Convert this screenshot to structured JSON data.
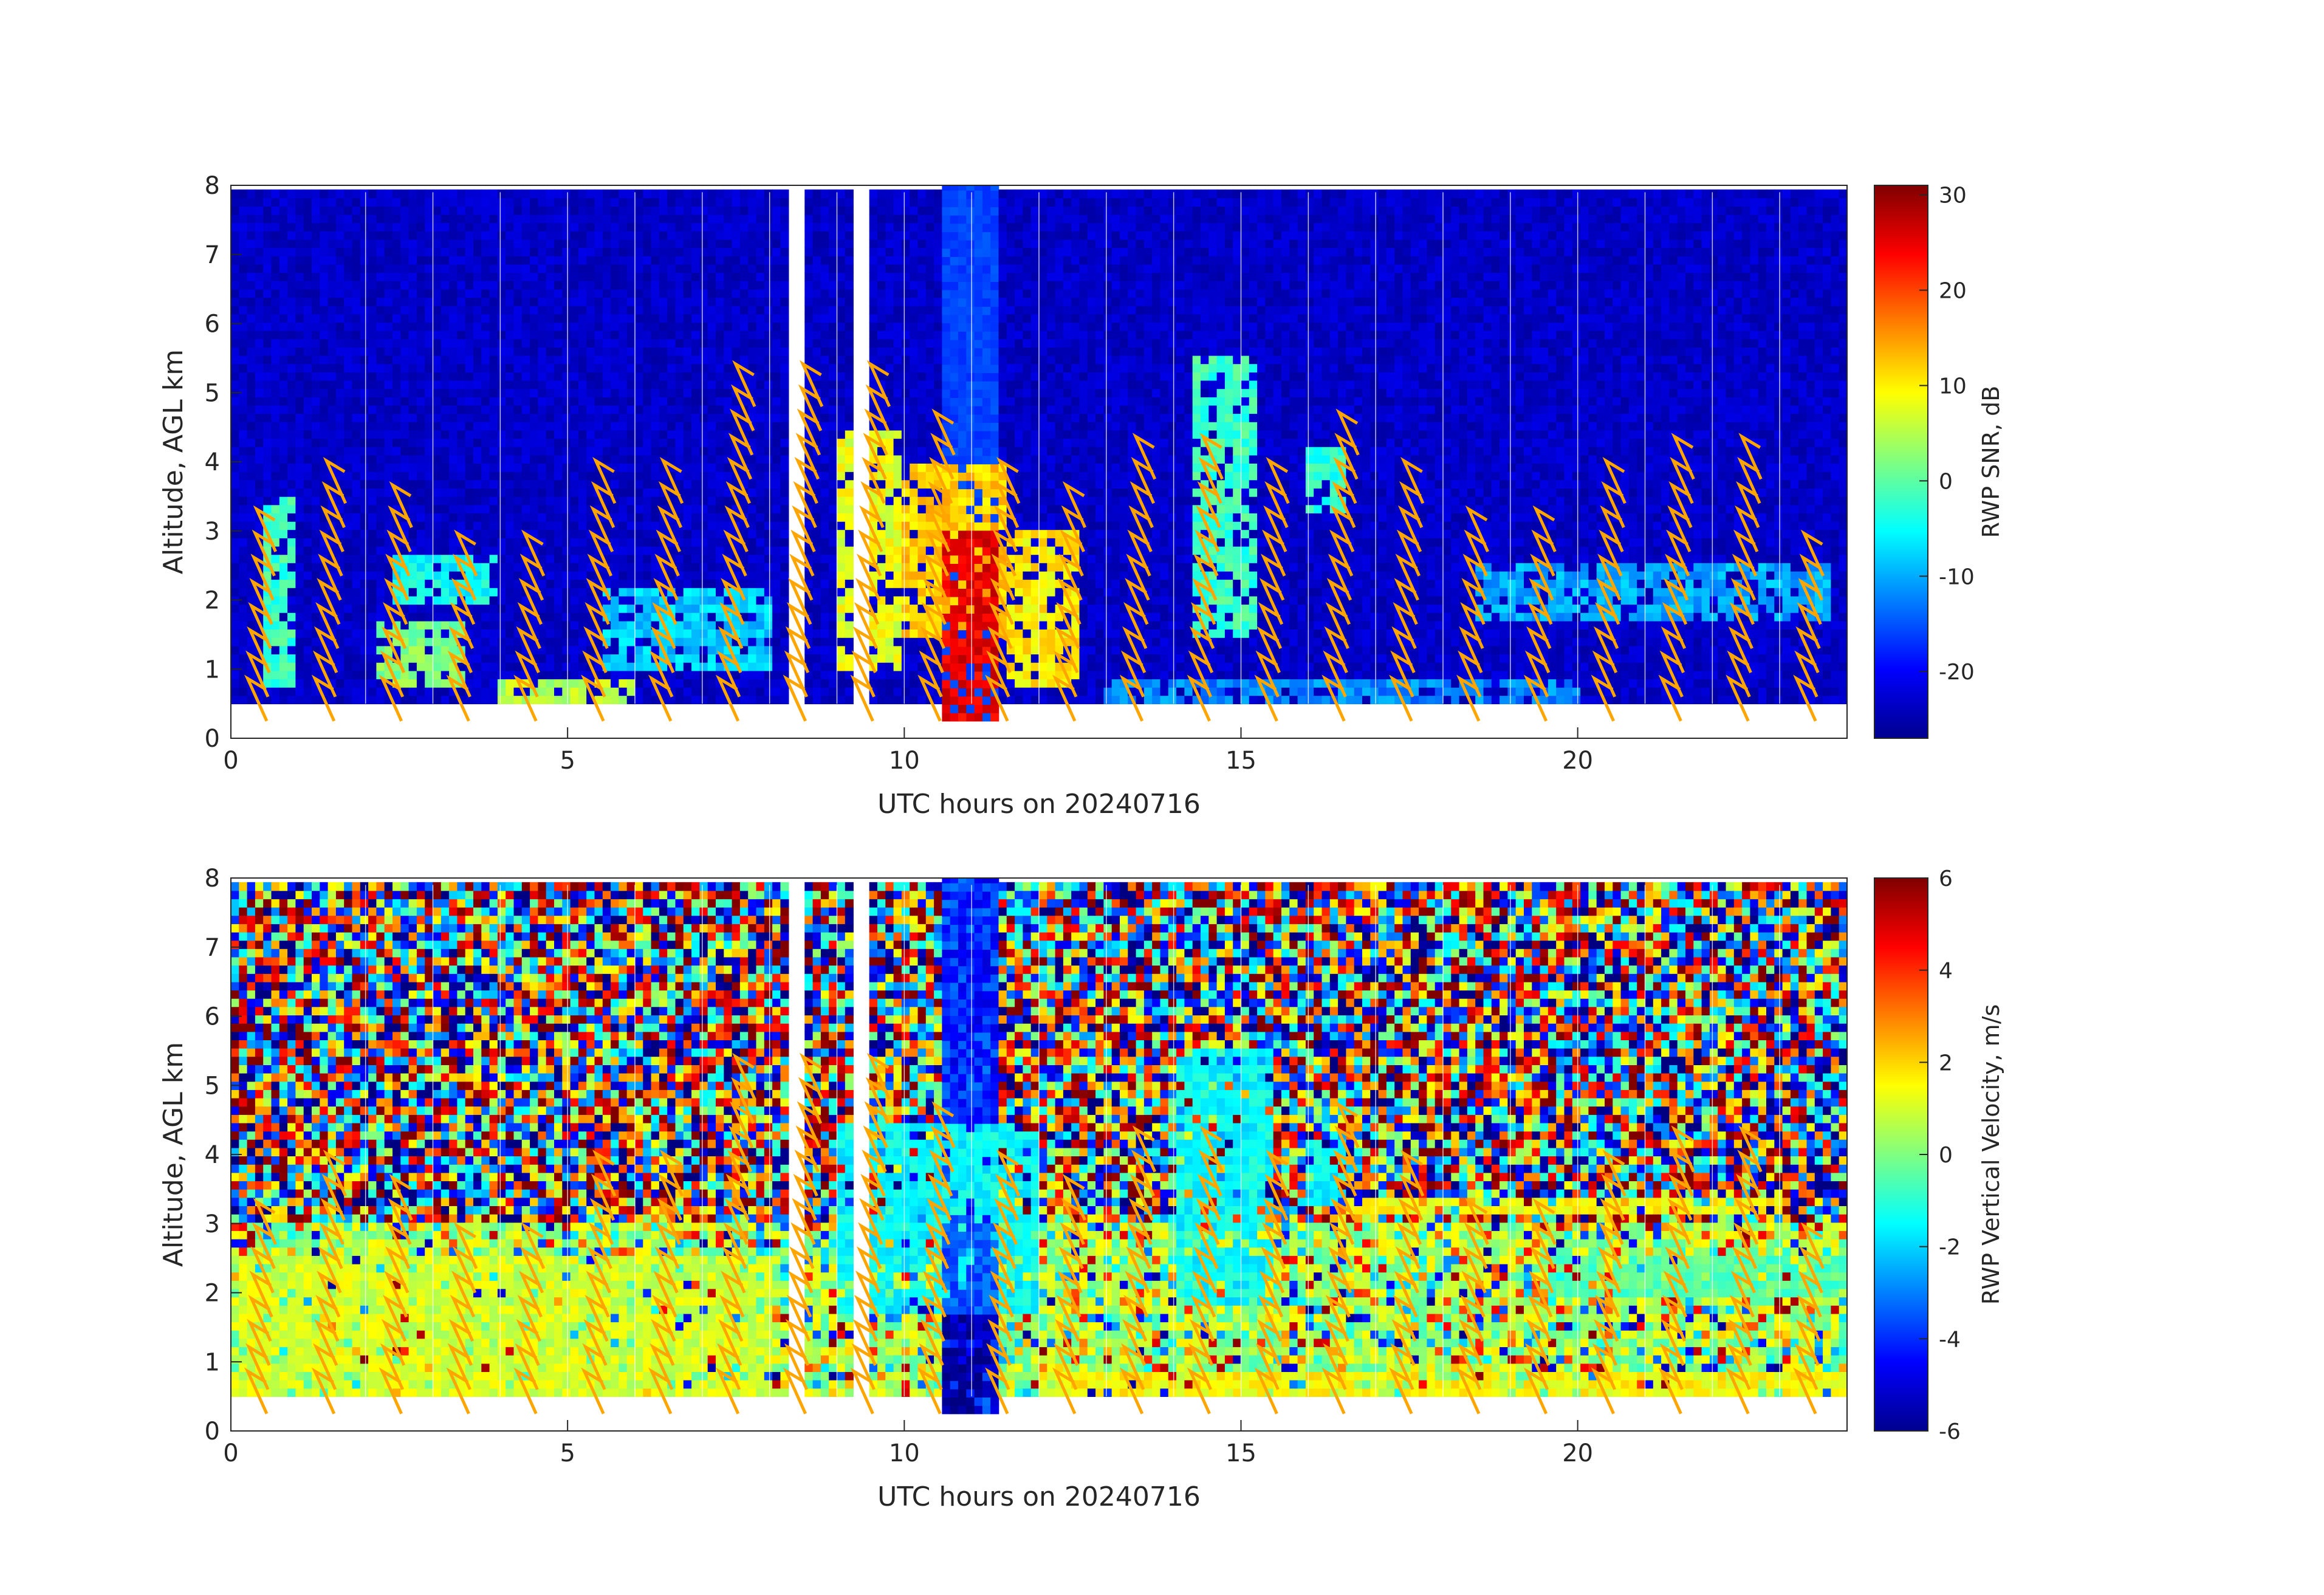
{
  "chart_data": [
    {
      "type": "heatmap",
      "title": "",
      "xlabel": "UTC hours on 20240716",
      "ylabel": "Altitude, AGL km",
      "xlim": [
        0,
        24
      ],
      "ylim": [
        0,
        8
      ],
      "xticks": [
        "0",
        "5",
        "10",
        "15",
        "20"
      ],
      "yticks": [
        "0",
        "1",
        "2",
        "3",
        "4",
        "5",
        "6",
        "7",
        "8"
      ],
      "colorbar": {
        "label": "RWP SNR, dB",
        "range": [
          -27,
          31
        ],
        "ticks": [
          "30",
          "20",
          "10",
          "0",
          "-10",
          "-20"
        ],
        "colormap": "jet"
      },
      "data_range_km": [
        0.5,
        7.9
      ],
      "background_level": -23,
      "missing_columns_hours": [
        8.35,
        9.3
      ],
      "rain_period_hours": [
        10.5,
        11.35
      ],
      "features": [
        {
          "x": [
            0.5,
            1.0
          ],
          "y": [
            0.7,
            3.5
          ],
          "value": -2
        },
        {
          "x": [
            2.2,
            3.5
          ],
          "y": [
            0.8,
            1.7
          ],
          "value": 2
        },
        {
          "x": [
            2.4,
            4.0
          ],
          "y": [
            2.0,
            2.7
          ],
          "value": -5
        },
        {
          "x": [
            4.0,
            6.0
          ],
          "y": [
            0.5,
            0.9
          ],
          "value": 5
        },
        {
          "x": [
            5.5,
            8.0
          ],
          "y": [
            1.0,
            2.2
          ],
          "value": -8
        },
        {
          "x": [
            9.0,
            10.0
          ],
          "y": [
            1.0,
            4.5
          ],
          "value": 8
        },
        {
          "x": [
            10.0,
            11.5
          ],
          "y": [
            1.5,
            4.0
          ],
          "value": 12
        },
        {
          "x": [
            10.5,
            11.35
          ],
          "y": [
            0.25,
            3.0
          ],
          "value": 25
        },
        {
          "x": [
            11.5,
            12.6
          ],
          "y": [
            0.7,
            3.0
          ],
          "value": 10
        },
        {
          "x": [
            14.3,
            15.2
          ],
          "y": [
            1.5,
            5.5
          ],
          "value": -2
        },
        {
          "x": [
            16.0,
            16.5
          ],
          "y": [
            3.3,
            4.2
          ],
          "value": -3
        },
        {
          "x": [
            18.5,
            23.8
          ],
          "y": [
            1.7,
            2.6
          ],
          "value": -10
        },
        {
          "x": [
            13.0,
            20.0
          ],
          "y": [
            0.5,
            0.8
          ],
          "value": -12
        }
      ]
    },
    {
      "type": "heatmap",
      "title": "",
      "xlabel": "UTC hours on 20240716",
      "ylabel": "Altitude, AGL km",
      "xlim": [
        0,
        24
      ],
      "ylim": [
        0,
        8
      ],
      "xticks": [
        "0",
        "5",
        "10",
        "15",
        "20"
      ],
      "yticks": [
        "0",
        "1",
        "2",
        "3",
        "4",
        "5",
        "6",
        "7",
        "8"
      ],
      "colorbar": {
        "label": "RWP Vertical Velocity, m/s",
        "range": [
          -6,
          6
        ],
        "ticks": [
          "6",
          "4",
          "2",
          "0",
          "-2",
          "-4",
          "-6"
        ],
        "colormap": "jet"
      },
      "data_range_km": [
        0.5,
        7.9
      ],
      "noise_above_km": 3.0,
      "missing_columns_hours": [
        8.35,
        9.3
      ],
      "rain_period_hours": [
        10.5,
        11.35
      ],
      "features": [
        {
          "x": [
            0.0,
            8.0
          ],
          "y": [
            0.5,
            2.6
          ],
          "value": 1.0
        },
        {
          "x": [
            9.0,
            12.0
          ],
          "y": [
            1.7,
            4.5
          ],
          "value": -1.5
        },
        {
          "x": [
            10.5,
            11.35
          ],
          "y": [
            0.25,
            1.7
          ],
          "value": -5.5
        },
        {
          "x": [
            10.5,
            11.35
          ],
          "y": [
            1.7,
            3.0
          ],
          "value": -3.5
        },
        {
          "x": [
            14.0,
            15.5
          ],
          "y": [
            1.8,
            5.5
          ],
          "value": -1.5
        },
        {
          "x": [
            16.0,
            16.6
          ],
          "y": [
            3.3,
            4.2
          ],
          "value": -1.5
        },
        {
          "x": [
            12.0,
            24.0
          ],
          "y": [
            0.5,
            0.9
          ],
          "value": 1.5
        },
        {
          "x": [
            16.5,
            23.0
          ],
          "y": [
            3.1,
            3.4
          ],
          "value": 1.5
        },
        {
          "x": [
            19.5,
            24.0
          ],
          "y": [
            2.0,
            2.6
          ],
          "value": -0.5
        }
      ]
    }
  ],
  "wind_barbs": {
    "color": "#ffa500",
    "times_hours": [
      0.6,
      1.6,
      2.6,
      3.6,
      4.6,
      5.6,
      6.6,
      7.6,
      8.6,
      9.6,
      10.6,
      11.6,
      12.6,
      13.6,
      14.6,
      15.6,
      16.6,
      17.6,
      18.6,
      19.6,
      20.6,
      21.6,
      22.6,
      23.6
    ],
    "top_km": [
      3.0,
      3.5,
      3.3,
      2.5,
      2.6,
      3.6,
      3.6,
      5.0,
      5.0,
      5.0,
      4.4,
      3.5,
      3.3,
      3.9,
      4.1,
      3.5,
      4.2,
      3.5,
      3.0,
      3.0,
      3.5,
      3.9,
      4.0,
      2.5
    ]
  }
}
